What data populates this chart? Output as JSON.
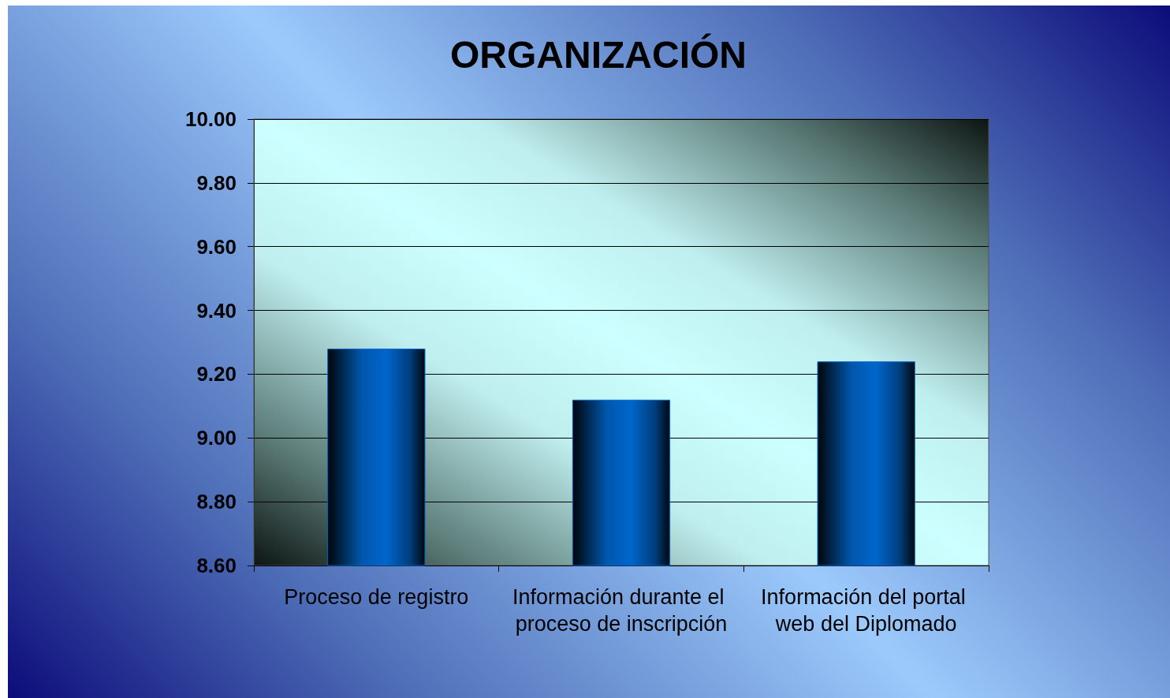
{
  "chart_data": {
    "type": "bar",
    "title": "ORGANIZACIÓN",
    "categories": [
      "Proceso de registro",
      "Información durante el proceso de inscripción",
      "Información del portal web del Diplomado"
    ],
    "values": [
      9.28,
      9.12,
      9.24
    ],
    "color": "#0066cc",
    "ylim": [
      8.6,
      10
    ],
    "yticks": [
      {
        "value": 8.6,
        "label": "8.60"
      },
      {
        "value": 8.8,
        "label": "8.80"
      },
      {
        "value": 9,
        "label": "9.00"
      },
      {
        "value": 9.2,
        "label": "9.20"
      },
      {
        "value": 9.4,
        "label": "9.40"
      },
      {
        "value": 9.6,
        "label": "9.60"
      },
      {
        "value": 9.8,
        "label": "9.80"
      },
      {
        "value": 10,
        "label": "10.00"
      }
    ],
    "grid": "y"
  }
}
